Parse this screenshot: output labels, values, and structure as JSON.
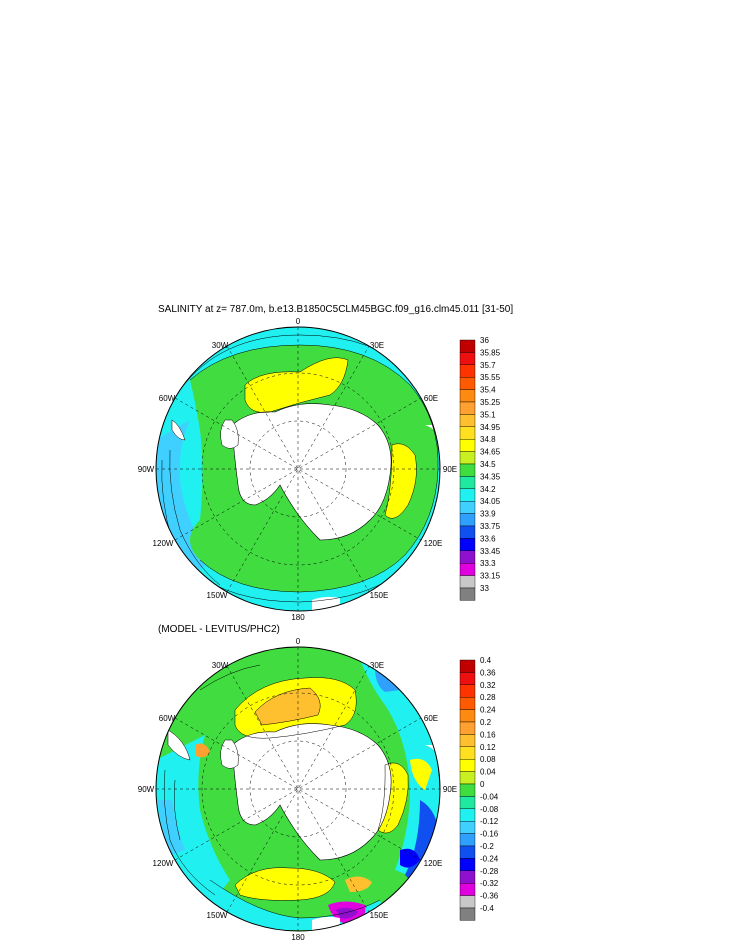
{
  "panel1": {
    "title": "SALINITY at z= 787.0m, b.e13.B1850C5CLM45BGC.f09_g16.clm45.011 [31-50]",
    "lon_labels": {
      "top": "0",
      "bottom": "180",
      "w30": "30W",
      "e30": "30E",
      "w60": "60W",
      "e60": "60E",
      "w90": "90W",
      "e90": "90E",
      "w120": "120W",
      "e120": "120E",
      "w150": "150W",
      "e150": "150E"
    },
    "colorbar": {
      "labels": [
        "36",
        "35.85",
        "35.7",
        "35.55",
        "35.4",
        "35.25",
        "35.1",
        "34.95",
        "34.8",
        "34.65",
        "34.5",
        "34.35",
        "34.2",
        "34.05",
        "33.9",
        "33.75",
        "33.6",
        "33.45",
        "33.3",
        "33.15",
        "33"
      ],
      "colors": [
        "#c00000",
        "#ee1010",
        "#ff3300",
        "#ff5a00",
        "#ff8a10",
        "#ffa030",
        "#ffc030",
        "#ffe020",
        "#ffff00",
        "#c8f020",
        "#40dc40",
        "#20e8a0",
        "#20f0f0",
        "#40d0ff",
        "#30a0ff",
        "#1050f0",
        "#0000ff",
        "#9010d0",
        "#e000e0",
        "#c8c8c8",
        "#808080"
      ]
    }
  },
  "panel2": {
    "title": "(MODEL - LEVITUS/PHC2)",
    "lon_labels": {
      "top": "0",
      "bottom": "180",
      "w30": "30W",
      "e30": "30E",
      "w60": "60W",
      "e60": "60E",
      "w90": "90W",
      "e90": "90E",
      "w120": "120W",
      "e120": "120E",
      "w150": "150W",
      "e150": "150E"
    },
    "colorbar": {
      "labels": [
        "0.4",
        "0.36",
        "0.32",
        "0.28",
        "0.24",
        "0.2",
        "0.16",
        "0.12",
        "0.08",
        "0.04",
        "0",
        "-0.04",
        "-0.08",
        "-0.12",
        "-0.16",
        "-0.2",
        "-0.24",
        "-0.28",
        "-0.32",
        "-0.36",
        "-0.4"
      ],
      "colors": [
        "#c00000",
        "#ee1010",
        "#ff3300",
        "#ff5a00",
        "#ff8a10",
        "#ffa030",
        "#ffc030",
        "#ffe020",
        "#ffff00",
        "#c8f020",
        "#40dc40",
        "#20e8a0",
        "#20f0f0",
        "#40d0ff",
        "#30a0ff",
        "#1050f0",
        "#0000ff",
        "#9010d0",
        "#e000e0",
        "#c8c8c8",
        "#808080"
      ]
    }
  }
}
